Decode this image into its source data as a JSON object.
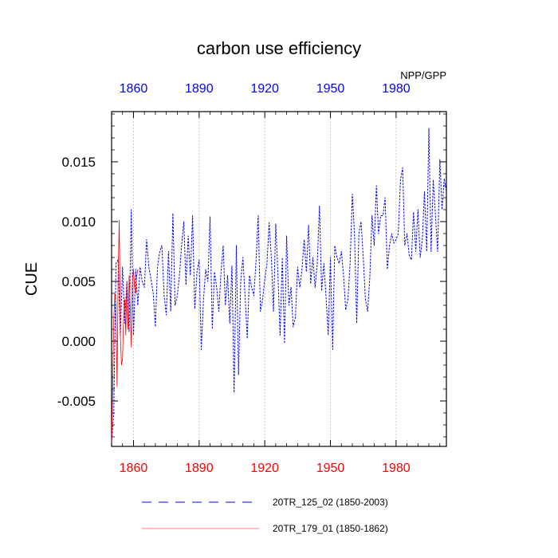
{
  "chart_data": {
    "type": "line",
    "title": "carbon use efficiency",
    "subtitle": "NPP/GPP",
    "ylabel": "CUE",
    "xlabel": "",
    "xlim": [
      1850,
      2003
    ],
    "ylim": [
      -0.0088,
      0.0192
    ],
    "yticks": [
      -0.005,
      0.0,
      0.005,
      0.01,
      0.015
    ],
    "ytick_labels": [
      "-0.005",
      "0.000",
      "0.005",
      "0.010",
      "0.015"
    ],
    "xticks_bottom": [
      1860,
      1890,
      1920,
      1950,
      1980
    ],
    "xtick_labels_bottom": [
      "1860",
      "1890",
      "1920",
      "1950",
      "1980"
    ],
    "xticks_top": [
      1860,
      1890,
      1920,
      1950,
      1980
    ],
    "xtick_labels_top": [
      "1860",
      "1890",
      "1920",
      "1950",
      "1980"
    ],
    "grid": "vertical dashed at x ticks",
    "colors": {
      "bottom_axis": "#ff0000",
      "top_axis": "#0000ff",
      "series_1": "#0000ff",
      "series_2": "#ff0000"
    },
    "series": [
      {
        "name": "20TR_125_02 (1850-2003)",
        "style": "dashed",
        "color": "#0000ff",
        "x_start": 1850,
        "x_step": 1,
        "values": [
          -0.0085,
          -0.006,
          0.0065,
          0.0068,
          0.0005,
          0.0062,
          0.0015,
          0.005,
          0.0008,
          0.011,
          0.0005,
          0.006,
          0.003,
          0.0062,
          0.005,
          0.0045,
          0.0085,
          0.0062,
          0.0052,
          0.004,
          0.0012,
          0.0062,
          0.0075,
          0.008,
          0.0038,
          0.0022,
          0.0075,
          0.0025,
          0.0107,
          0.003,
          0.0038,
          0.0055,
          0.008,
          0.01,
          0.0047,
          0.0088,
          0.0055,
          0.0105,
          0.0027,
          0.0058,
          0.0068,
          -0.0007,
          0.0035,
          0.006,
          0.005,
          0.0104,
          0.001,
          0.0058,
          0.0045,
          0.0025,
          0.0058,
          0.008,
          0.003,
          0.0055,
          0.0015,
          0.0063,
          -0.0043,
          0.008,
          -0.0028,
          0.005,
          0.007,
          0.0037,
          0.0002,
          0.0055,
          0.0045,
          0.0038,
          0.0067,
          0.0105,
          0.0025,
          0.0035,
          0.0052,
          0.0065,
          0.0099,
          0.007,
          0.0025,
          0.0098,
          0.0057,
          0.0005,
          0.007,
          -0.0002,
          0.0088,
          0.003,
          0.0045,
          0.0012,
          0.002,
          0.0062,
          0.0045,
          0.006,
          0.0085,
          0.0058,
          0.0097,
          0.0048,
          0.007,
          0.0045,
          0.0065,
          0.0113,
          0.0042,
          0.0065,
          0.0037,
          0.0005,
          0.007,
          -0.0007,
          0.008,
          0.007,
          0.0065,
          0.0075,
          0.0055,
          0.0026,
          0.0035,
          0.0065,
          0.0123,
          0.009,
          0.0015,
          0.009,
          0.01,
          0.007,
          0.0035,
          0.0025,
          0.0053,
          0.0105,
          0.008,
          0.013,
          0.009,
          0.0105,
          0.0105,
          0.012,
          0.006,
          0.008,
          0.009,
          0.0082,
          0.0085,
          0.009,
          0.0135,
          0.0145,
          0.008,
          0.009,
          0.0072,
          0.0068,
          0.0108,
          0.0075,
          0.011,
          0.007,
          0.0085,
          0.0125,
          0.0075,
          0.0178,
          0.0075,
          0.0135,
          0.0105,
          0.0075,
          0.0152,
          0.011,
          0.0136,
          0.0125
        ]
      },
      {
        "name": "20TR_179_01 (1850-1862)",
        "style": "solid",
        "color": "#ff0000",
        "x_start": 1850,
        "x_step": 0.5,
        "values": [
          -0.0085,
          -0.004,
          0.0018,
          0.004,
          0.003,
          -0.0038,
          0.0055,
          0.0101,
          0.0005,
          -0.002,
          -0.0015,
          0.002,
          0.0035,
          0.0005,
          0.005,
          0.001,
          0.0055,
          0.003,
          -0.0005,
          0.005,
          0.006,
          0.0045,
          0.004,
          0.0055,
          0.006
        ]
      }
    ]
  }
}
